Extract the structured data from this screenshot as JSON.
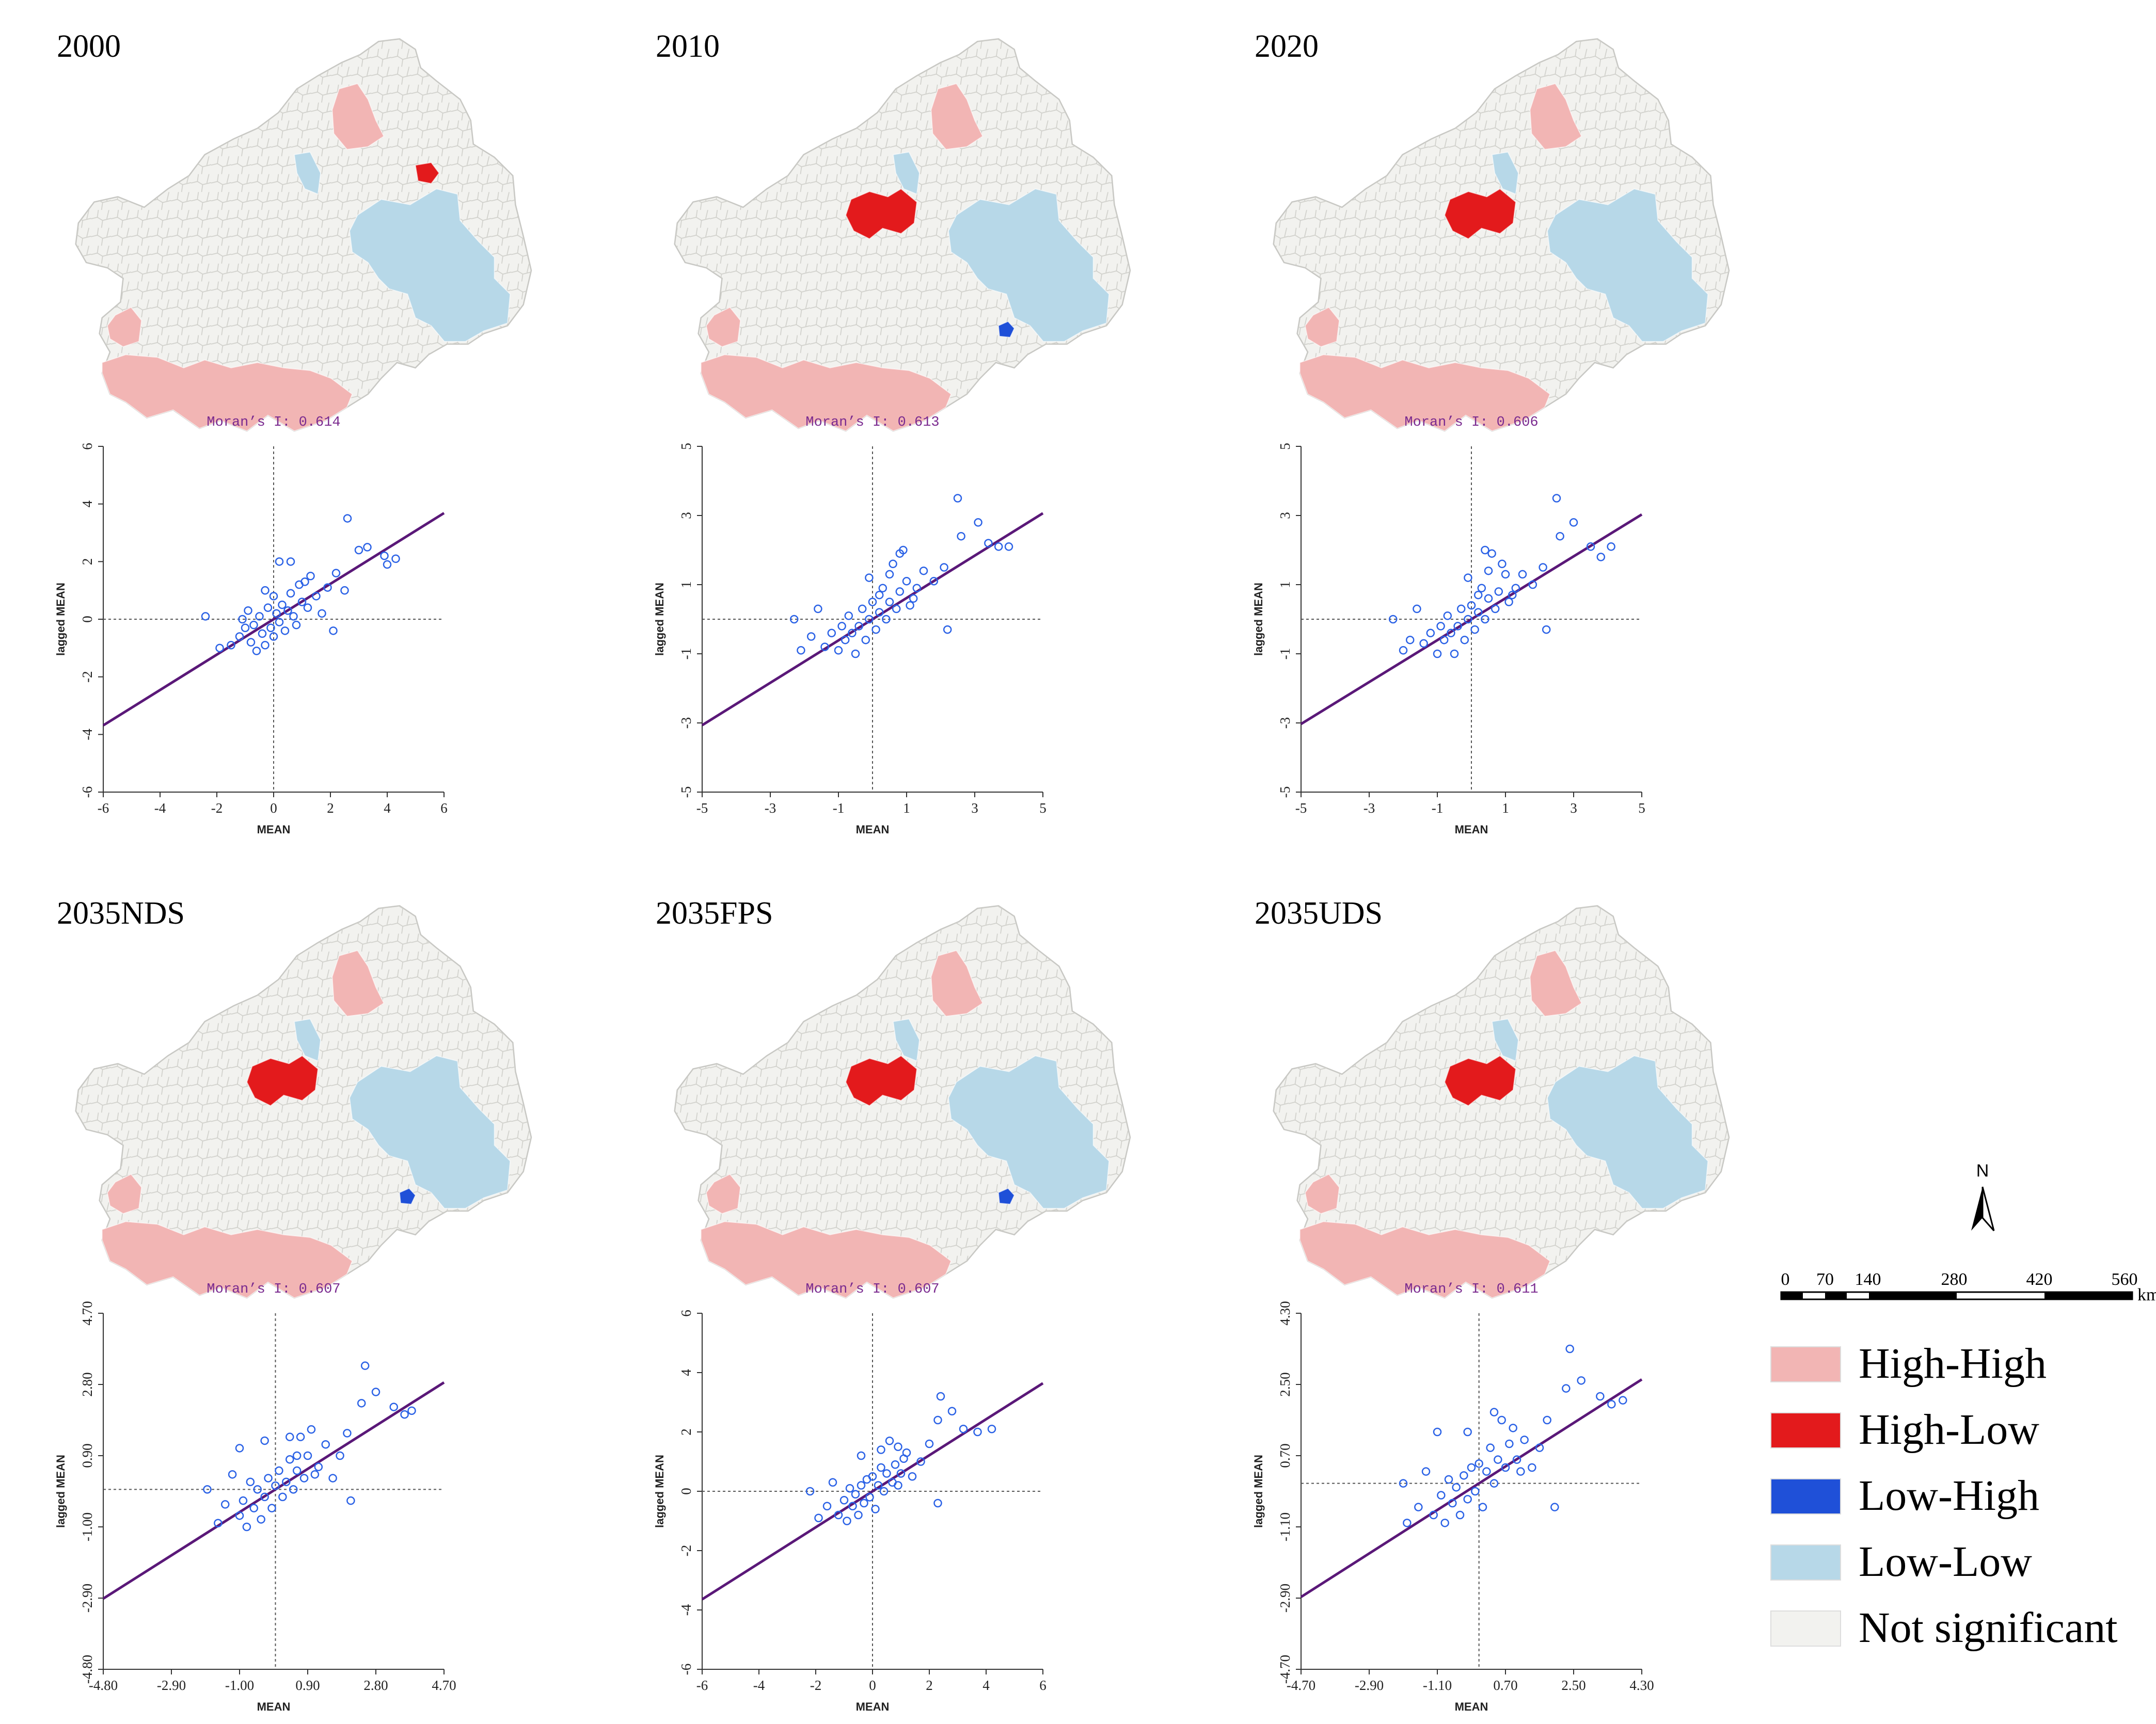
{
  "colors": {
    "high_high": "#f2b5b4",
    "high_low": "#e31a1c",
    "low_high": "#1f50d8",
    "low_low": "#b7d8e8",
    "not_significant": "#f2f2ef",
    "border": "#c8c8c4",
    "points": "#2b62e6",
    "regression": "#5a1878"
  },
  "maps": [
    {
      "title": "2000",
      "clusters": {
        "north_hh": true,
        "north_hl_small": true,
        "center_hl": false,
        "center_ll_strip": true,
        "east_ll": true,
        "east_lh_dot": false,
        "south_hh": true
      }
    },
    {
      "title": "2010",
      "clusters": {
        "north_hh": true,
        "north_hl_small": false,
        "center_hl": true,
        "center_ll_strip": true,
        "east_ll": true,
        "east_lh_dot": true,
        "south_hh": true
      }
    },
    {
      "title": "2020",
      "clusters": {
        "north_hh": true,
        "north_hl_small": false,
        "center_hl": true,
        "center_ll_strip": true,
        "east_ll": true,
        "east_lh_dot": false,
        "south_hh": true
      }
    },
    {
      "title": "2035NDS",
      "clusters": {
        "north_hh": true,
        "north_hl_small": false,
        "center_hl": true,
        "center_ll_strip": true,
        "east_ll": true,
        "east_lh_dot": true,
        "south_hh": true
      }
    },
    {
      "title": "2035FPS",
      "clusters": {
        "north_hh": true,
        "north_hl_small": false,
        "center_hl": true,
        "center_ll_strip": true,
        "east_ll": true,
        "east_lh_dot": true,
        "south_hh": true
      }
    },
    {
      "title": "2035UDS",
      "clusters": {
        "north_hh": true,
        "north_hl_small": false,
        "center_hl": true,
        "center_ll_strip": true,
        "east_ll": true,
        "east_lh_dot": false,
        "south_hh": true
      }
    }
  ],
  "chart_data": [
    {
      "type": "scatter",
      "title": "Moran’s I: 0.614",
      "xlabel": "MEAN",
      "ylabel": "lagged MEAN",
      "xlim": [
        -6,
        6
      ],
      "ylim": [
        -6,
        6
      ],
      "xticks": [
        "-6",
        "-4",
        "-2",
        "0",
        "2",
        "4",
        "6"
      ],
      "yticks": [
        "-6",
        "-4",
        "-2",
        "0",
        "2",
        "4",
        "6"
      ],
      "slope": 0.614,
      "points": [
        [
          -2.4,
          0.1
        ],
        [
          -1.9,
          -1.0
        ],
        [
          -1.5,
          -0.9
        ],
        [
          -1.2,
          -0.6
        ],
        [
          -1.0,
          -0.3
        ],
        [
          -0.9,
          0.3
        ],
        [
          -0.8,
          -0.8
        ],
        [
          -0.7,
          -0.2
        ],
        [
          -0.6,
          -1.1
        ],
        [
          -0.5,
          0.1
        ],
        [
          -0.4,
          -0.5
        ],
        [
          -0.3,
          -0.9
        ],
        [
          -0.2,
          0.4
        ],
        [
          -0.1,
          -0.3
        ],
        [
          0.0,
          -0.6
        ],
        [
          0.1,
          0.2
        ],
        [
          0.2,
          -0.1
        ],
        [
          0.3,
          0.5
        ],
        [
          0.4,
          -0.4
        ],
        [
          0.5,
          0.3
        ],
        [
          0.6,
          0.9
        ],
        [
          0.7,
          0.1
        ],
        [
          0.8,
          -0.2
        ],
        [
          0.9,
          1.2
        ],
        [
          1.0,
          0.6
        ],
        [
          1.2,
          0.4
        ],
        [
          1.3,
          1.5
        ],
        [
          1.5,
          0.8
        ],
        [
          1.7,
          0.2
        ],
        [
          1.9,
          1.1
        ],
        [
          2.1,
          -0.4
        ],
        [
          2.2,
          1.6
        ],
        [
          2.5,
          1.0
        ],
        [
          2.6,
          3.5
        ],
        [
          3.0,
          2.4
        ],
        [
          3.3,
          2.5
        ],
        [
          3.9,
          2.2
        ],
        [
          4.0,
          1.9
        ],
        [
          4.3,
          2.1
        ],
        [
          0.2,
          2.0
        ],
        [
          0.6,
          2.0
        ],
        [
          -0.3,
          1.0
        ],
        [
          -1.1,
          0.0
        ],
        [
          1.1,
          1.3
        ],
        [
          0.0,
          0.8
        ]
      ]
    },
    {
      "type": "scatter",
      "title": "Moran’s I: 0.613",
      "xlabel": "MEAN",
      "ylabel": "lagged MEAN",
      "xlim": [
        -5,
        5
      ],
      "ylim": [
        -5,
        5
      ],
      "xticks": [
        "-5",
        "-3",
        "-1",
        "1",
        "3",
        "5"
      ],
      "yticks": [
        "-5",
        "-3",
        "-1",
        "1",
        "3",
        "5"
      ],
      "slope": 0.613,
      "points": [
        [
          -2.3,
          0.0
        ],
        [
          -2.1,
          -0.9
        ],
        [
          -1.8,
          -0.5
        ],
        [
          -1.6,
          0.3
        ],
        [
          -1.4,
          -0.8
        ],
        [
          -1.2,
          -0.4
        ],
        [
          -1.0,
          -0.9
        ],
        [
          -0.9,
          -0.2
        ],
        [
          -0.8,
          -0.6
        ],
        [
          -0.7,
          0.1
        ],
        [
          -0.6,
          -0.4
        ],
        [
          -0.5,
          -1.0
        ],
        [
          -0.4,
          -0.2
        ],
        [
          -0.3,
          0.3
        ],
        [
          -0.2,
          -0.6
        ],
        [
          -0.1,
          0.0
        ],
        [
          0.0,
          0.5
        ],
        [
          0.1,
          -0.3
        ],
        [
          0.2,
          0.2
        ],
        [
          0.3,
          0.9
        ],
        [
          0.4,
          0.0
        ],
        [
          0.5,
          0.5
        ],
        [
          0.6,
          1.6
        ],
        [
          0.7,
          0.3
        ],
        [
          0.8,
          0.8
        ],
        [
          0.9,
          2.0
        ],
        [
          1.0,
          1.1
        ],
        [
          1.2,
          0.6
        ],
        [
          1.3,
          0.9
        ],
        [
          1.5,
          1.4
        ],
        [
          1.8,
          1.1
        ],
        [
          2.1,
          1.5
        ],
        [
          2.2,
          -0.3
        ],
        [
          2.5,
          3.5
        ],
        [
          2.6,
          2.4
        ],
        [
          3.1,
          2.8
        ],
        [
          3.4,
          2.2
        ],
        [
          3.7,
          2.1
        ],
        [
          4.0,
          2.1
        ],
        [
          0.5,
          1.3
        ],
        [
          0.8,
          1.9
        ],
        [
          -0.1,
          1.2
        ],
        [
          0.2,
          0.7
        ],
        [
          1.1,
          0.4
        ]
      ]
    },
    {
      "type": "scatter",
      "title": "Moran’s I: 0.606",
      "xlabel": "MEAN",
      "ylabel": "lagged MEAN",
      "xlim": [
        -5,
        5
      ],
      "ylim": [
        -5,
        5
      ],
      "xticks": [
        "-5",
        "-3",
        "-1",
        "1",
        "3",
        "5"
      ],
      "yticks": [
        "-5",
        "-3",
        "-1",
        "1",
        "3",
        "5"
      ],
      "slope": 0.606,
      "points": [
        [
          -2.3,
          0.0
        ],
        [
          -2.0,
          -0.9
        ],
        [
          -1.8,
          -0.6
        ],
        [
          -1.6,
          0.3
        ],
        [
          -1.4,
          -0.7
        ],
        [
          -1.2,
          -0.4
        ],
        [
          -1.0,
          -1.0
        ],
        [
          -0.9,
          -0.2
        ],
        [
          -0.8,
          -0.6
        ],
        [
          -0.7,
          0.1
        ],
        [
          -0.6,
          -0.4
        ],
        [
          -0.5,
          -1.0
        ],
        [
          -0.4,
          -0.2
        ],
        [
          -0.3,
          0.3
        ],
        [
          -0.2,
          -0.6
        ],
        [
          -0.1,
          0.0
        ],
        [
          0.0,
          0.4
        ],
        [
          0.1,
          -0.3
        ],
        [
          0.2,
          0.2
        ],
        [
          0.3,
          0.9
        ],
        [
          0.4,
          0.0
        ],
        [
          0.5,
          0.6
        ],
        [
          0.6,
          1.9
        ],
        [
          0.7,
          0.3
        ],
        [
          0.8,
          0.8
        ],
        [
          0.9,
          1.6
        ],
        [
          1.0,
          1.3
        ],
        [
          1.2,
          0.7
        ],
        [
          1.3,
          0.9
        ],
        [
          1.5,
          1.3
        ],
        [
          1.8,
          1.0
        ],
        [
          2.1,
          1.5
        ],
        [
          2.2,
          -0.3
        ],
        [
          2.5,
          3.5
        ],
        [
          2.6,
          2.4
        ],
        [
          3.0,
          2.8
        ],
        [
          3.5,
          2.1
        ],
        [
          3.8,
          1.8
        ],
        [
          4.1,
          2.1
        ],
        [
          0.5,
          1.4
        ],
        [
          0.4,
          2.0
        ],
        [
          -0.1,
          1.2
        ],
        [
          0.2,
          0.7
        ],
        [
          1.1,
          0.5
        ]
      ]
    },
    {
      "type": "scatter",
      "title": "Moran’s I: 0.607",
      "xlabel": "MEAN",
      "ylabel": "lagged MEAN",
      "xlim": [
        -4.8,
        4.7
      ],
      "ylim": [
        -4.8,
        4.7
      ],
      "xticks": [
        "-4.80",
        "-2.90",
        "-1.00",
        "0.90",
        "2.80",
        "4.70"
      ],
      "yticks": [
        "-4.80",
        "-2.90",
        "-1.00",
        "0.90",
        "2.80",
        "4.70"
      ],
      "slope": 0.607,
      "points": [
        [
          -1.9,
          0.0
        ],
        [
          -1.6,
          -0.9
        ],
        [
          -1.4,
          -0.4
        ],
        [
          -1.2,
          0.4
        ],
        [
          -1.0,
          -0.7
        ],
        [
          -0.9,
          -0.3
        ],
        [
          -0.8,
          -1.0
        ],
        [
          -0.7,
          0.2
        ],
        [
          -0.6,
          -0.5
        ],
        [
          -0.5,
          0.0
        ],
        [
          -0.4,
          -0.8
        ],
        [
          -0.3,
          -0.2
        ],
        [
          -0.2,
          0.3
        ],
        [
          -0.1,
          -0.5
        ],
        [
          0.0,
          0.1
        ],
        [
          0.1,
          0.5
        ],
        [
          0.2,
          -0.2
        ],
        [
          0.3,
          0.2
        ],
        [
          0.4,
          0.8
        ],
        [
          0.5,
          0.0
        ],
        [
          0.6,
          0.5
        ],
        [
          0.7,
          1.4
        ],
        [
          0.8,
          0.3
        ],
        [
          0.9,
          0.9
        ],
        [
          1.0,
          1.6
        ],
        [
          1.2,
          0.6
        ],
        [
          1.4,
          1.2
        ],
        [
          1.6,
          0.3
        ],
        [
          1.8,
          0.9
        ],
        [
          2.0,
          1.5
        ],
        [
          2.1,
          -0.3
        ],
        [
          2.5,
          3.3
        ],
        [
          2.4,
          2.3
        ],
        [
          2.8,
          2.6
        ],
        [
          3.3,
          2.2
        ],
        [
          3.6,
          2.0
        ],
        [
          3.8,
          2.1
        ],
        [
          -1.0,
          1.1
        ],
        [
          -0.3,
          1.3
        ],
        [
          0.4,
          1.4
        ],
        [
          0.6,
          0.9
        ],
        [
          1.1,
          0.4
        ]
      ]
    },
    {
      "type": "scatter",
      "title": "Moran’s I: 0.607",
      "xlabel": "MEAN",
      "ylabel": "lagged MEAN",
      "xlim": [
        -6,
        6
      ],
      "ylim": [
        -6,
        6
      ],
      "xticks": [
        "-6",
        "-4",
        "-2",
        "0",
        "2",
        "4",
        "6"
      ],
      "yticks": [
        "-6",
        "-4",
        "-2",
        "0",
        "2",
        "4",
        "6"
      ],
      "slope": 0.607,
      "points": [
        [
          -2.2,
          0.0
        ],
        [
          -1.9,
          -0.9
        ],
        [
          -1.6,
          -0.5
        ],
        [
          -1.4,
          0.3
        ],
        [
          -1.2,
          -0.8
        ],
        [
          -1.0,
          -0.3
        ],
        [
          -0.9,
          -1.0
        ],
        [
          -0.8,
          0.1
        ],
        [
          -0.7,
          -0.5
        ],
        [
          -0.6,
          -0.1
        ],
        [
          -0.5,
          -0.8
        ],
        [
          -0.4,
          0.2
        ],
        [
          -0.3,
          -0.4
        ],
        [
          -0.2,
          0.4
        ],
        [
          -0.1,
          -0.2
        ],
        [
          0.0,
          0.5
        ],
        [
          0.1,
          -0.6
        ],
        [
          0.2,
          0.2
        ],
        [
          0.3,
          0.8
        ],
        [
          0.4,
          0.0
        ],
        [
          0.5,
          0.6
        ],
        [
          0.6,
          1.7
        ],
        [
          0.7,
          0.3
        ],
        [
          0.8,
          0.9
        ],
        [
          0.9,
          1.5
        ],
        [
          1.0,
          0.6
        ],
        [
          1.2,
          1.3
        ],
        [
          1.4,
          0.5
        ],
        [
          1.7,
          1.0
        ],
        [
          2.0,
          1.6
        ],
        [
          2.3,
          -0.4
        ],
        [
          2.4,
          3.2
        ],
        [
          2.3,
          2.4
        ],
        [
          2.8,
          2.7
        ],
        [
          3.2,
          2.1
        ],
        [
          3.7,
          2.0
        ],
        [
          4.2,
          2.1
        ],
        [
          -0.4,
          1.2
        ],
        [
          0.3,
          1.4
        ],
        [
          0.9,
          0.2
        ],
        [
          1.1,
          1.1
        ]
      ]
    },
    {
      "type": "scatter",
      "title": "Moran’s I: 0.611",
      "xlabel": "MEAN",
      "ylabel": "lagged MEAN",
      "xlim": [
        -4.7,
        4.3
      ],
      "ylim": [
        -4.7,
        4.3
      ],
      "xticks": [
        "-4.70",
        "-2.90",
        "-1.10",
        "0.70",
        "2.50",
        "4.30"
      ],
      "yticks": [
        "-4.70",
        "-2.90",
        "-1.10",
        "0.70",
        "2.50",
        "4.30"
      ],
      "slope": 0.611,
      "points": [
        [
          -2.0,
          0.0
        ],
        [
          -1.9,
          -1.0
        ],
        [
          -1.6,
          -0.6
        ],
        [
          -1.4,
          0.3
        ],
        [
          -1.2,
          -0.8
        ],
        [
          -1.0,
          -0.3
        ],
        [
          -0.9,
          -1.0
        ],
        [
          -0.8,
          0.1
        ],
        [
          -0.7,
          -0.5
        ],
        [
          -0.6,
          -0.1
        ],
        [
          -0.5,
          -0.8
        ],
        [
          -0.4,
          0.2
        ],
        [
          -0.3,
          -0.4
        ],
        [
          -0.2,
          0.4
        ],
        [
          -0.1,
          -0.2
        ],
        [
          0.0,
          0.5
        ],
        [
          0.1,
          -0.6
        ],
        [
          0.2,
          0.3
        ],
        [
          0.3,
          0.9
        ],
        [
          0.4,
          0.0
        ],
        [
          0.5,
          0.6
        ],
        [
          0.6,
          1.6
        ],
        [
          0.7,
          0.4
        ],
        [
          0.8,
          1.0
        ],
        [
          0.9,
          1.4
        ],
        [
          1.0,
          0.6
        ],
        [
          1.2,
          1.1
        ],
        [
          1.4,
          0.4
        ],
        [
          1.6,
          0.9
        ],
        [
          1.8,
          1.6
        ],
        [
          2.0,
          -0.6
        ],
        [
          2.4,
          3.4
        ],
        [
          2.3,
          2.4
        ],
        [
          2.7,
          2.6
        ],
        [
          3.2,
          2.2
        ],
        [
          3.5,
          2.0
        ],
        [
          3.8,
          2.1
        ],
        [
          -1.1,
          1.3
        ],
        [
          -0.3,
          1.3
        ],
        [
          0.4,
          1.8
        ],
        [
          1.1,
          0.3
        ]
      ]
    }
  ],
  "legend": {
    "north_label": "N",
    "scale_labels": [
      "0",
      "70",
      "140",
      "280",
      "420",
      "560"
    ],
    "scale_unit": "km",
    "items": [
      {
        "label": "High-High",
        "color": "#f2b5b4"
      },
      {
        "label": "High-Low",
        "color": "#e31a1c"
      },
      {
        "label": "Low-High",
        "color": "#1f50d8"
      },
      {
        "label": "Low-Low",
        "color": "#b7d8e8"
      },
      {
        "label": "Not significant",
        "color": "#f2f2ef"
      }
    ]
  }
}
